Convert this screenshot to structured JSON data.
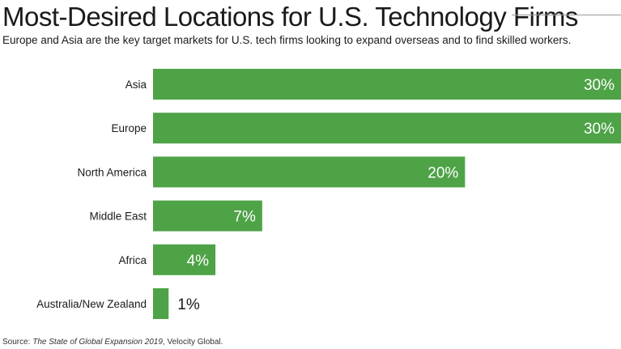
{
  "chart_data": {
    "type": "bar",
    "orientation": "horizontal",
    "title": "Most-Desired Locations for U.S. Technology Firms",
    "subtitle": "Europe and Asia are the key target markets for U.S. tech firms looking to expand overseas and to find skilled workers.",
    "categories": [
      "Asia",
      "Europe",
      "North America",
      "Middle East",
      "Africa",
      "Australia/New Zealand"
    ],
    "values": [
      30,
      30,
      20,
      7,
      4,
      1
    ],
    "value_labels": [
      "30%",
      "30%",
      "20%",
      "7%",
      "4%",
      "1%"
    ],
    "xlim": [
      0,
      30
    ],
    "grid": false,
    "bar_color": "#4ea347",
    "label_color_inside": "#ffffff",
    "label_color_outside": "#1a1a1a"
  },
  "source": {
    "prefix": "Source: ",
    "title": "The State of Global Expansion 2019",
    "suffix": ", Velocity Global."
  }
}
